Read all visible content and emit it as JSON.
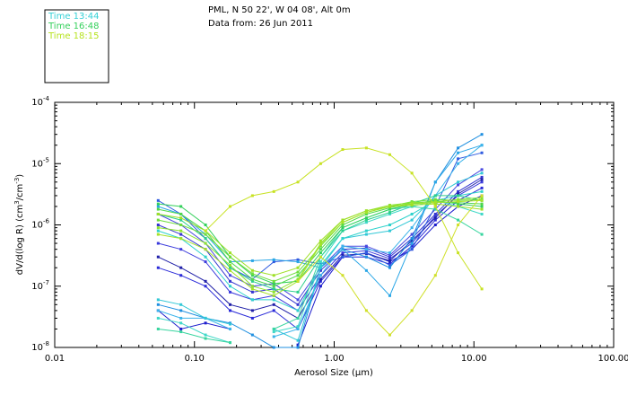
{
  "header": {
    "site": "PML, N 50 22', W 04 08', Alt 0m",
    "date": "Data from: 26 Jun 2011"
  },
  "legend": [
    {
      "label": "Time 13:44",
      "color": "#33d0d6"
    },
    {
      "label": "Time 16:48",
      "color": "#33d05a"
    },
    {
      "label": "Time 18:15",
      "color": "#b6e31c"
    }
  ],
  "chart_data": {
    "type": "line",
    "title": "PML, N 50 22', W 04 08', Alt 0m",
    "subtitle": "Data from: 26 Jun 2011",
    "xlabel": "Aerosol Size (µm)",
    "ylabel": "dV/d(log R) (cm³/cm⁻³)",
    "ylabel_parts": {
      "main": "dV/d(log R) (cm",
      "sup1": "3",
      "mid": "/cm",
      "sup2": "-3",
      "end": ")"
    },
    "xscale": "log",
    "yscale": "log",
    "xlim": [
      0.01,
      100
    ],
    "ylim": [
      1e-08,
      0.0001
    ],
    "x_ticks": [
      0.01,
      0.1,
      1,
      10,
      100
    ],
    "x_tick_labels": [
      "0.01",
      "0.10",
      "1.00",
      "10.00",
      "100.00"
    ],
    "y_ticks": [
      1e-08,
      1e-07,
      1e-06,
      1e-05,
      0.0001
    ],
    "y_tick_labels": [
      {
        "mant": "10",
        "exp": "-8"
      },
      {
        "mant": "10",
        "exp": "-7"
      },
      {
        "mant": "10",
        "exp": "-6"
      },
      {
        "mant": "10",
        "exp": "-5"
      },
      {
        "mant": "10",
        "exp": "-4"
      }
    ],
    "x": [
      0.055,
      0.08,
      0.12,
      0.18,
      0.26,
      0.37,
      0.55,
      0.8,
      1.15,
      1.7,
      2.5,
      3.6,
      5.3,
      7.7,
      11.4
    ],
    "series": [
      {
        "name": "blue-1",
        "color": "#1d1dcc",
        "values": [
          4e-08,
          2e-08,
          2.5e-08,
          2e-08,
          null,
          null,
          1.1e-08,
          1e-07,
          3e-07,
          3.5e-07,
          2.5e-07,
          4e-07,
          1e-06,
          2e-06,
          3e-06
        ]
      },
      {
        "name": "blue-2",
        "color": "#2a2ad8",
        "values": [
          2e-07,
          1.5e-07,
          1e-07,
          4e-08,
          3e-08,
          4e-08,
          2e-08,
          1.2e-07,
          3e-07,
          3e-07,
          2.3e-07,
          4.5e-07,
          1.2e-06,
          2.5e-06,
          4e-06
        ]
      },
      {
        "name": "blue-3",
        "color": "#3b3bdc",
        "values": [
          5e-07,
          4e-07,
          2.5e-07,
          8e-08,
          6e-08,
          7e-08,
          4e-08,
          1.5e-07,
          3.5e-07,
          3.8e-07,
          2.8e-07,
          5e-07,
          1.4e-06,
          3e-06,
          5e-06
        ]
      },
      {
        "name": "blue-4",
        "color": "#3535d0",
        "values": [
          1e-06,
          7e-07,
          4e-07,
          1.2e-07,
          8e-08,
          9e-08,
          5e-08,
          1.8e-07,
          4e-07,
          4.2e-07,
          3e-07,
          6e-07,
          1.5e-06,
          3.5e-06,
          6e-06
        ]
      },
      {
        "name": "blue-5",
        "color": "#4a4ae0",
        "values": [
          1.5e-06,
          1e-06,
          5e-07,
          1.5e-07,
          1e-07,
          1.1e-07,
          6e-08,
          2e-07,
          4.5e-07,
          4.5e-07,
          3.2e-07,
          7e-07,
          1.8e-06,
          4.5e-06,
          8e-06
        ]
      },
      {
        "name": "navy-1",
        "color": "#2020a8",
        "values": [
          3e-07,
          2e-07,
          1.2e-07,
          5e-08,
          4e-08,
          5e-08,
          3e-08,
          1.3e-07,
          3.2e-07,
          3.4e-07,
          2.6e-07,
          5.5e-07,
          1.3e-06,
          3.2e-06,
          5.5e-06
        ]
      },
      {
        "name": "royal-1",
        "color": "#2f5be0",
        "values": [
          2.5e-06,
          1.5e-06,
          6e-07,
          2e-07,
          1.3e-07,
          2.5e-07,
          2.7e-07,
          2.3e-07,
          3e-07,
          3.5e-07,
          2.2e-07,
          4e-07,
          2e-06,
          1.2e-05,
          1.5e-05
        ]
      },
      {
        "name": "sky-1",
        "color": "#1f8fe0",
        "values": [
          5e-08,
          4e-08,
          3e-08,
          2.5e-08,
          1.6e-08,
          1e-08,
          1e-08,
          2e-07,
          4e-07,
          3e-07,
          2e-07,
          6e-07,
          5e-06,
          1.8e-05,
          3e-05
        ]
      },
      {
        "name": "sky-2",
        "color": "#2aa6e6",
        "values": [
          2e-06,
          1.5e-06,
          7e-07,
          2.5e-07,
          2.6e-07,
          2.7e-07,
          2.5e-07,
          2e-07,
          4e-07,
          1.8e-07,
          7e-08,
          5e-07,
          5e-06,
          1.5e-05,
          2e-05
        ]
      },
      {
        "name": "sky-3",
        "color": "#3cb4ea",
        "values": [
          4e-08,
          3e-08,
          3e-08,
          2e-08,
          null,
          1.5e-08,
          2e-08,
          1.5e-07,
          4.5e-07,
          4e-07,
          3.5e-07,
          9e-07,
          3e-06,
          1e-05,
          2e-05
        ]
      },
      {
        "name": "cyan-1",
        "color": "#33c8d6",
        "values": [
          6e-08,
          5e-08,
          3e-08,
          2.4e-08,
          null,
          2e-08,
          1.3e-08,
          2e-07,
          6e-07,
          7e-07,
          8e-07,
          1.2e-06,
          3e-06,
          5e-06,
          7e-06
        ]
      },
      {
        "name": "cyan-2",
        "color": "#2fd2cc",
        "values": [
          8e-07,
          6e-07,
          3e-07,
          1e-07,
          6e-08,
          6e-08,
          4e-08,
          2.2e-07,
          6e-07,
          8e-07,
          1e-06,
          1.5e-06,
          2.5e-06,
          3e-06,
          3.5e-06
        ]
      },
      {
        "name": "cyan-3",
        "color": "#40d8c8",
        "values": [
          3e-08,
          2.5e-08,
          1.6e-08,
          1.2e-08,
          null,
          1.8e-08,
          2.2e-08,
          2.5e-07,
          8e-07,
          1.1e-06,
          1.5e-06,
          2e-06,
          2.5e-06,
          2e-06,
          1.5e-06
        ]
      },
      {
        "name": "teal-1",
        "color": "#2dcf8d",
        "values": [
          1.5e-06,
          1.2e-06,
          6e-07,
          2e-07,
          1.2e-07,
          9e-08,
          8e-08,
          3e-07,
          8e-07,
          1.2e-06,
          1.6e-06,
          2.2e-06,
          3e-06,
          3e-06,
          2.5e-06
        ]
      },
      {
        "name": "teal-2",
        "color": "#38d59f",
        "values": [
          2e-08,
          1.8e-08,
          1.4e-08,
          1.2e-08,
          null,
          2e-08,
          3e-08,
          3e-07,
          9e-07,
          1.3e-06,
          1.8e-06,
          2e-06,
          1.8e-06,
          1.2e-06,
          7e-07
        ]
      },
      {
        "name": "green-1",
        "color": "#33d05a",
        "values": [
          2.2e-06,
          2e-06,
          1e-06,
          3e-07,
          1.5e-07,
          1.1e-07,
          1.2e-07,
          3.5e-07,
          9e-07,
          1.3e-06,
          1.8e-06,
          2.2e-06,
          2.5e-06,
          2.2e-06,
          2e-06
        ]
      },
      {
        "name": "green-2",
        "color": "#52d84a",
        "values": [
          1.8e-06,
          1.5e-06,
          8e-07,
          2.5e-07,
          1.3e-07,
          1e-07,
          1.5e-07,
          4e-07,
          1e-06,
          1.5e-06,
          1.9e-06,
          2.3e-06,
          2.4e-06,
          2.3e-06,
          2.2e-06
        ]
      },
      {
        "name": "green-3",
        "color": "#6fde3c",
        "values": [
          1.2e-06,
          1e-06,
          7e-07,
          3e-07,
          1.6e-07,
          1.2e-07,
          1.7e-07,
          4.5e-07,
          1.1e-06,
          1.6e-06,
          2e-06,
          2.4e-06,
          2.6e-06,
          2.5e-06,
          2.6e-06
        ]
      },
      {
        "name": "green-4",
        "color": "#8ee332",
        "values": [
          9e-07,
          8e-07,
          5e-07,
          2.2e-07,
          1e-07,
          8e-08,
          1.3e-07,
          5e-07,
          1.2e-06,
          1.7e-06,
          2.1e-06,
          2.3e-06,
          2.4e-06,
          2.6e-06,
          2.8e-06
        ]
      },
      {
        "name": "lime-1",
        "color": "#a6e22a",
        "values": [
          7e-07,
          6e-07,
          4e-07,
          1.8e-07,
          9e-08,
          7e-08,
          1.2e-07,
          4.8e-07,
          1.1e-06,
          1.6e-06,
          2e-06,
          2.2e-06,
          2.3e-06,
          2.4e-06,
          2.5e-06
        ]
      },
      {
        "name": "lime-2",
        "color": "#9fe027",
        "values": [
          1.5e-06,
          1.3e-06,
          8e-07,
          3.5e-07,
          1.8e-07,
          1.5e-07,
          2e-07,
          5.5e-07,
          1.2e-06,
          1.7e-06,
          2e-06,
          2.1e-06,
          2.2e-06,
          2e-06,
          1.8e-06
        ]
      },
      {
        "name": "yellow-1",
        "color": "#c8e224",
        "values": [
          null,
          null,
          8e-07,
          2e-06,
          3e-06,
          3.5e-06,
          5e-06,
          1e-05,
          1.7e-05,
          1.8e-05,
          1.4e-05,
          7e-06,
          2e-06,
          3.5e-07,
          9e-08
        ]
      },
      {
        "name": "yellow-2",
        "color": "#d0e02a",
        "values": [
          null,
          null,
          null,
          null,
          null,
          null,
          1.2e-07,
          3e-07,
          1.5e-07,
          4e-08,
          1.6e-08,
          4e-08,
          1.5e-07,
          1e-06,
          3e-06
        ]
      }
    ]
  }
}
